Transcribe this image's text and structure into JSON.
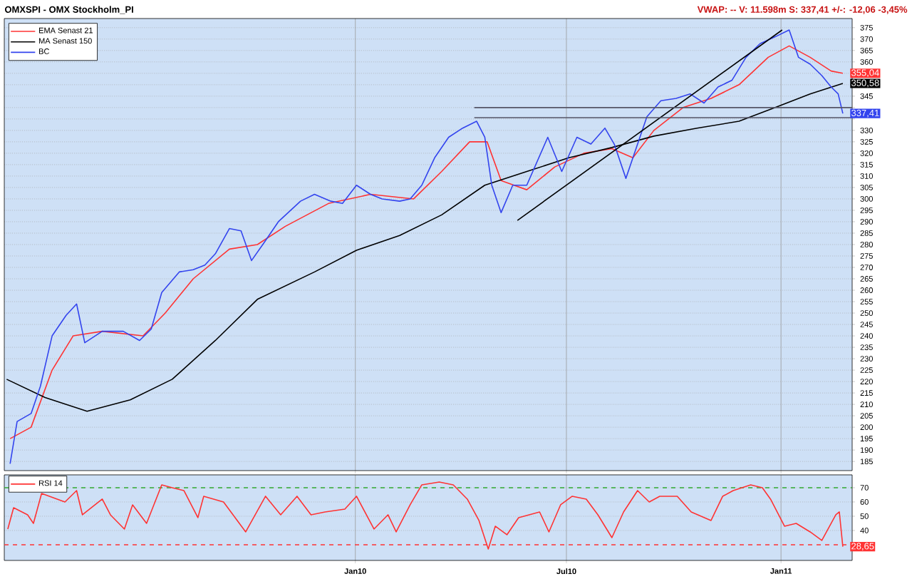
{
  "chart_data": [
    {
      "type": "line",
      "title": "OMXSPI - OMX Stockholm_PI",
      "annotations": [
        "VWAP: -- V: 11.598m S: 337,41 +/-: -12,06 -3,45%",
        {
          "text": "355,04",
          "x": "2011-02-23",
          "y": 355.04
        },
        {
          "text": "350,58",
          "x": "2011-02-23",
          "y": 350.58
        },
        {
          "text": "337,41",
          "x": "2011-02-23",
          "y": 337.41
        }
      ],
      "xlim": [
        "2009-03-06",
        "2011-03-03"
      ],
      "xticks": [
        {
          "value": "2010-01-01",
          "label": null
        },
        {
          "value": "2010-07-01",
          "label": null
        },
        {
          "value": "2011-01-01",
          "label": null
        }
      ],
      "ylim": [
        181,
        379
      ],
      "yticks": [
        185,
        190,
        195,
        200,
        205,
        210,
        215,
        220,
        225,
        230,
        235,
        240,
        245,
        250,
        255,
        260,
        265,
        270,
        275,
        280,
        285,
        290,
        295,
        300,
        305,
        310,
        315,
        320,
        325,
        330,
        {
          "value": 335,
          "label": null
        },
        {
          "value": 340,
          "label": null
        },
        345,
        {
          "value": 350,
          "label": null
        },
        {
          "value": 355,
          "label": null
        },
        360,
        365,
        370,
        375
      ],
      "grid": true,
      "legend": "top left",
      "tick_labels": "y",
      "series": [
        {
          "name": "EMA  Senast 21",
          "color": "#ff3333",
          "x": [
            "2009-03-11",
            "2009-03-29",
            "2009-04-16",
            "2009-05-04",
            "2009-05-29",
            "2009-07-03",
            "2009-07-22",
            "2009-08-15",
            "2009-09-15",
            "2009-10-09",
            "2009-11-02",
            "2009-12-09",
            "2010-01-14",
            "2010-02-20",
            "2010-03-16",
            "2010-04-09",
            "2010-04-24",
            "2010-05-06",
            "2010-05-28",
            "2010-06-21",
            "2010-07-16",
            "2010-08-09",
            "2010-08-27",
            "2010-09-14",
            "2010-10-09",
            "2010-11-02",
            "2010-11-26",
            "2010-12-21",
            "2011-01-08",
            "2011-01-26",
            "2011-02-13",
            "2011-02-23"
          ],
          "values": [
            195,
            200,
            225,
            240,
            242,
            240,
            250,
            265,
            278,
            280,
            288,
            298,
            302,
            300,
            312,
            325,
            325,
            308,
            304,
            314,
            320,
            322,
            318,
            330,
            340,
            344,
            350,
            362,
            367,
            362,
            356,
            355.04
          ]
        },
        {
          "name": "MA  Senast 150",
          "color": "#000000",
          "x": [
            "2009-03-08",
            "2009-04-10",
            "2009-05-16",
            "2009-06-22",
            "2009-07-28",
            "2009-09-03",
            "2009-10-09",
            "2009-11-27",
            "2010-01-02",
            "2010-02-08",
            "2010-03-16",
            "2010-04-22",
            "2010-05-28",
            "2010-07-03",
            "2010-08-09",
            "2010-09-14",
            "2010-10-21",
            "2010-11-26",
            "2010-12-27",
            "2011-01-26",
            "2011-02-23"
          ],
          "values": [
            221,
            213,
            207,
            212,
            221,
            238,
            256,
            268,
            277.5,
            284,
            293,
            306,
            312,
            318,
            322.5,
            327.5,
            331,
            334,
            340,
            346,
            350.58
          ]
        },
        {
          "name": "BC",
          "color": "#3344ee",
          "x": [
            "2009-03-11",
            "2009-03-17",
            "2009-03-29",
            "2009-04-06",
            "2009-04-16",
            "2009-04-28",
            "2009-05-07",
            "2009-05-14",
            "2009-05-29",
            "2009-06-16",
            "2009-06-30",
            "2009-07-10",
            "2009-07-19",
            "2009-08-03",
            "2009-08-15",
            "2009-08-25",
            "2009-09-03",
            "2009-09-15",
            "2009-09-25",
            "2009-10-04",
            "2009-10-15",
            "2009-10-27",
            "2009-11-15",
            "2009-11-27",
            "2009-12-11",
            "2009-12-21",
            "2010-01-02",
            "2010-01-14",
            "2010-01-24",
            "2010-02-08",
            "2010-02-17",
            "2010-02-27",
            "2010-03-10",
            "2010-03-22",
            "2010-04-03",
            "2010-04-15",
            "2010-04-22",
            "2010-04-28",
            "2010-05-06",
            "2010-05-16",
            "2010-05-28",
            "2010-06-15",
            "2010-06-27",
            "2010-07-10",
            "2010-07-22",
            "2010-08-03",
            "2010-08-11",
            "2010-08-21",
            "2010-09-02",
            "2010-09-08",
            "2010-09-20",
            "2010-10-03",
            "2010-10-15",
            "2010-10-27",
            "2010-11-08",
            "2010-11-20",
            "2010-12-02",
            "2010-12-14",
            "2010-12-27",
            "2011-01-08",
            "2011-01-16",
            "2011-01-26",
            "2011-02-05",
            "2011-02-13",
            "2011-02-19",
            "2011-02-23"
          ],
          "values": [
            184,
            202.5,
            206,
            218,
            240,
            249,
            254,
            237,
            242,
            242,
            238,
            243,
            259,
            268,
            269,
            271,
            276,
            287,
            286,
            273,
            281,
            290,
            299,
            302,
            299,
            298,
            306,
            302,
            300,
            299,
            300,
            306,
            318,
            327,
            331,
            334,
            327,
            306,
            294,
            306,
            306,
            327,
            312,
            327,
            324,
            331,
            324,
            309,
            327,
            336,
            343,
            344,
            346,
            342,
            349,
            352,
            362,
            368,
            371,
            374,
            362,
            359,
            354,
            349,
            346,
            337.41
          ]
        },
        {
          "color": "#000000",
          "x": [
            "2010-05-20",
            "2011-01-02"
          ],
          "values": [
            290.6,
            374
          ]
        },
        {
          "color": "#555566",
          "x": [
            "2010-04-13",
            "2011-03-03"
          ],
          "values": [
            340,
            340
          ]
        },
        {
          "color": "#555566",
          "x": [
            "2010-04-13",
            "2011-03-03"
          ],
          "values": [
            335.6,
            335.6
          ]
        }
      ]
    },
    {
      "type": "line",
      "annotations": [
        {
          "text": "28,65",
          "x": "2011-02-23",
          "y": 28.65
        }
      ],
      "xlim": [
        "2009-03-06",
        "2011-03-03"
      ],
      "xticks": [
        {
          "value": "2010-01-01",
          "label": "Jan10"
        },
        {
          "value": "2010-07-01",
          "label": "Jul10"
        },
        {
          "value": "2011-01-01",
          "label": "Jan11"
        }
      ],
      "ylim": [
        19,
        79
      ],
      "yticks": [
        40,
        50,
        60,
        70
      ],
      "grid": true,
      "legend": "top left",
      "ref_lines": [
        {
          "axis": "y",
          "value": 70,
          "color": "#33aa33",
          "line_style": "dashed"
        },
        {
          "axis": "y",
          "value": 30,
          "color": "#ff3333",
          "line_style": "dashed"
        }
      ],
      "series": [
        {
          "name": "RSI  14",
          "color": "#ff3333",
          "x": [
            "2009-03-09",
            "2009-03-14",
            "2009-03-26",
            "2009-03-31",
            "2009-04-07",
            "2009-04-15",
            "2009-04-27",
            "2009-05-07",
            "2009-05-12",
            "2009-05-29",
            "2009-06-05",
            "2009-06-17",
            "2009-06-24",
            "2009-07-06",
            "2009-07-19",
            "2009-07-28",
            "2009-08-07",
            "2009-08-19",
            "2009-08-24",
            "2009-09-10",
            "2009-09-29",
            "2009-10-16",
            "2009-10-29",
            "2009-11-12",
            "2009-11-24",
            "2009-12-06",
            "2009-12-23",
            "2010-01-02",
            "2010-01-17",
            "2010-01-29",
            "2010-02-05",
            "2010-02-17",
            "2010-02-27",
            "2010-03-14",
            "2010-03-26",
            "2010-04-07",
            "2010-04-17",
            "2010-04-25",
            "2010-05-01",
            "2010-05-11",
            "2010-05-21",
            "2010-05-30",
            "2010-06-08",
            "2010-06-16",
            "2010-06-26",
            "2010-07-06",
            "2010-07-18",
            "2010-07-28",
            "2010-08-09",
            "2010-08-19",
            "2010-08-31",
            "2010-09-10",
            "2010-09-19",
            "2010-10-04",
            "2010-10-16",
            "2010-11-02",
            "2010-11-12",
            "2010-11-21",
            "2010-12-06",
            "2010-12-16",
            "2010-12-23",
            "2011-01-04",
            "2011-01-14",
            "2011-01-26",
            "2011-02-05",
            "2011-02-17",
            "2011-02-20",
            "2011-02-23"
          ],
          "values": [
            41,
            56,
            51,
            45,
            66,
            null,
            60,
            68,
            51,
            62,
            51,
            41,
            58,
            45,
            72,
            70,
            68,
            49,
            64,
            60,
            39,
            64,
            51,
            64,
            51,
            53,
            55,
            64,
            41,
            51,
            39,
            58,
            72,
            74,
            72,
            62,
            47,
            27,
            43,
            37,
            49,
            51,
            53,
            39,
            58,
            64,
            62,
            51,
            35,
            53,
            68,
            60,
            64,
            64,
            53,
            47,
            64,
            68,
            72,
            70,
            62,
            43,
            45,
            39,
            33,
            51,
            53,
            28.65
          ]
        }
      ]
    }
  ]
}
